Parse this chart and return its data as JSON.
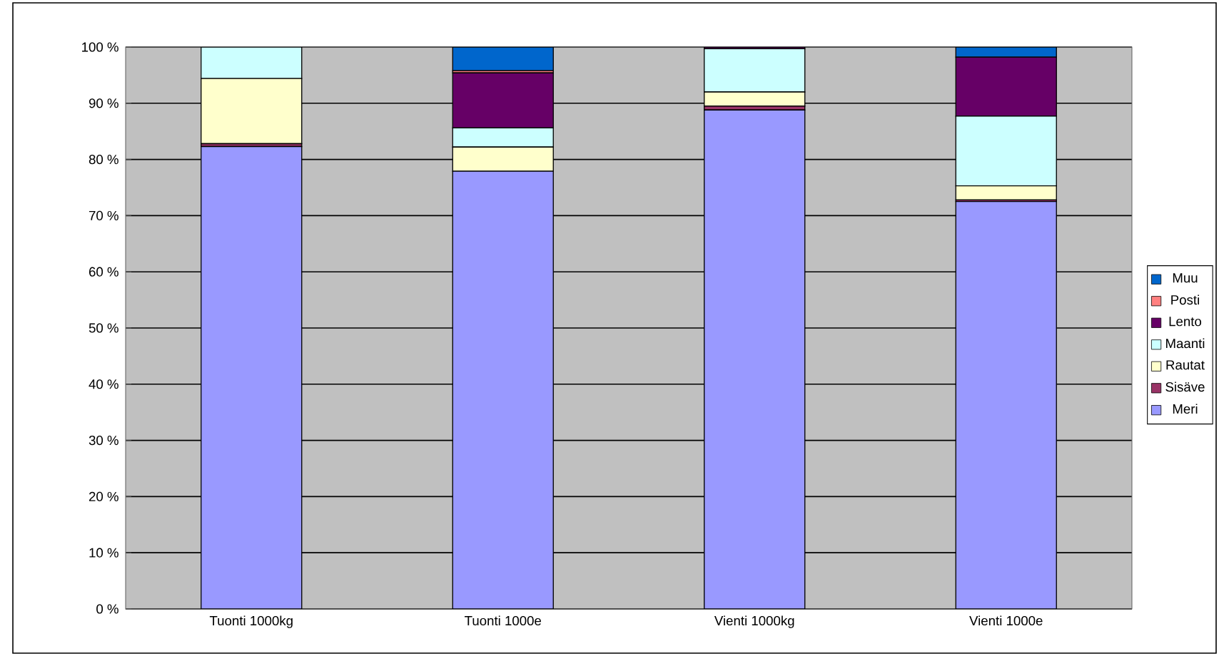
{
  "chart_data": {
    "type": "bar",
    "stacked": true,
    "categories": [
      "Tuonti 1000kg",
      "Tuonti 1000e",
      "Vienti 1000kg",
      "Vienti 1000e"
    ],
    "series": [
      {
        "name": "Meri",
        "color": "#9999ff",
        "values": [
          82.3,
          77.9,
          88.8,
          72.5
        ]
      },
      {
        "name": "Sisäve",
        "color": "#993366",
        "values": [
          0.5,
          0,
          0.7,
          0.3
        ]
      },
      {
        "name": "Rautat",
        "color": "#ffffcc",
        "values": [
          11.6,
          4.3,
          2.5,
          2.5
        ]
      },
      {
        "name": "Maanti",
        "color": "#ccffff",
        "values": [
          5.6,
          3.4,
          7.7,
          12.4
        ]
      },
      {
        "name": "Lento",
        "color": "#660066",
        "values": [
          0,
          9.8,
          0.3,
          10.5
        ]
      },
      {
        "name": "Posti",
        "color": "#ff8080",
        "values": [
          0,
          0.4,
          0,
          0
        ]
      },
      {
        "name": "Muu",
        "color": "#0066cc",
        "values": [
          0,
          4.2,
          0,
          1.8
        ]
      }
    ],
    "ylim": [
      0,
      100
    ],
    "yticks": [
      {
        "value": 0,
        "label": "0 %"
      },
      {
        "value": 10,
        "label": "10 %"
      },
      {
        "value": 20,
        "label": "20 %"
      },
      {
        "value": 30,
        "label": "30 %"
      },
      {
        "value": 40,
        "label": "40 %"
      },
      {
        "value": 50,
        "label": "50 %"
      },
      {
        "value": 60,
        "label": "60 %"
      },
      {
        "value": 70,
        "label": "70 %"
      },
      {
        "value": 80,
        "label": "80 %"
      },
      {
        "value": 90,
        "label": "90 %"
      },
      {
        "value": 100,
        "label": "100 %"
      }
    ],
    "grid": "y",
    "legend": "right"
  }
}
